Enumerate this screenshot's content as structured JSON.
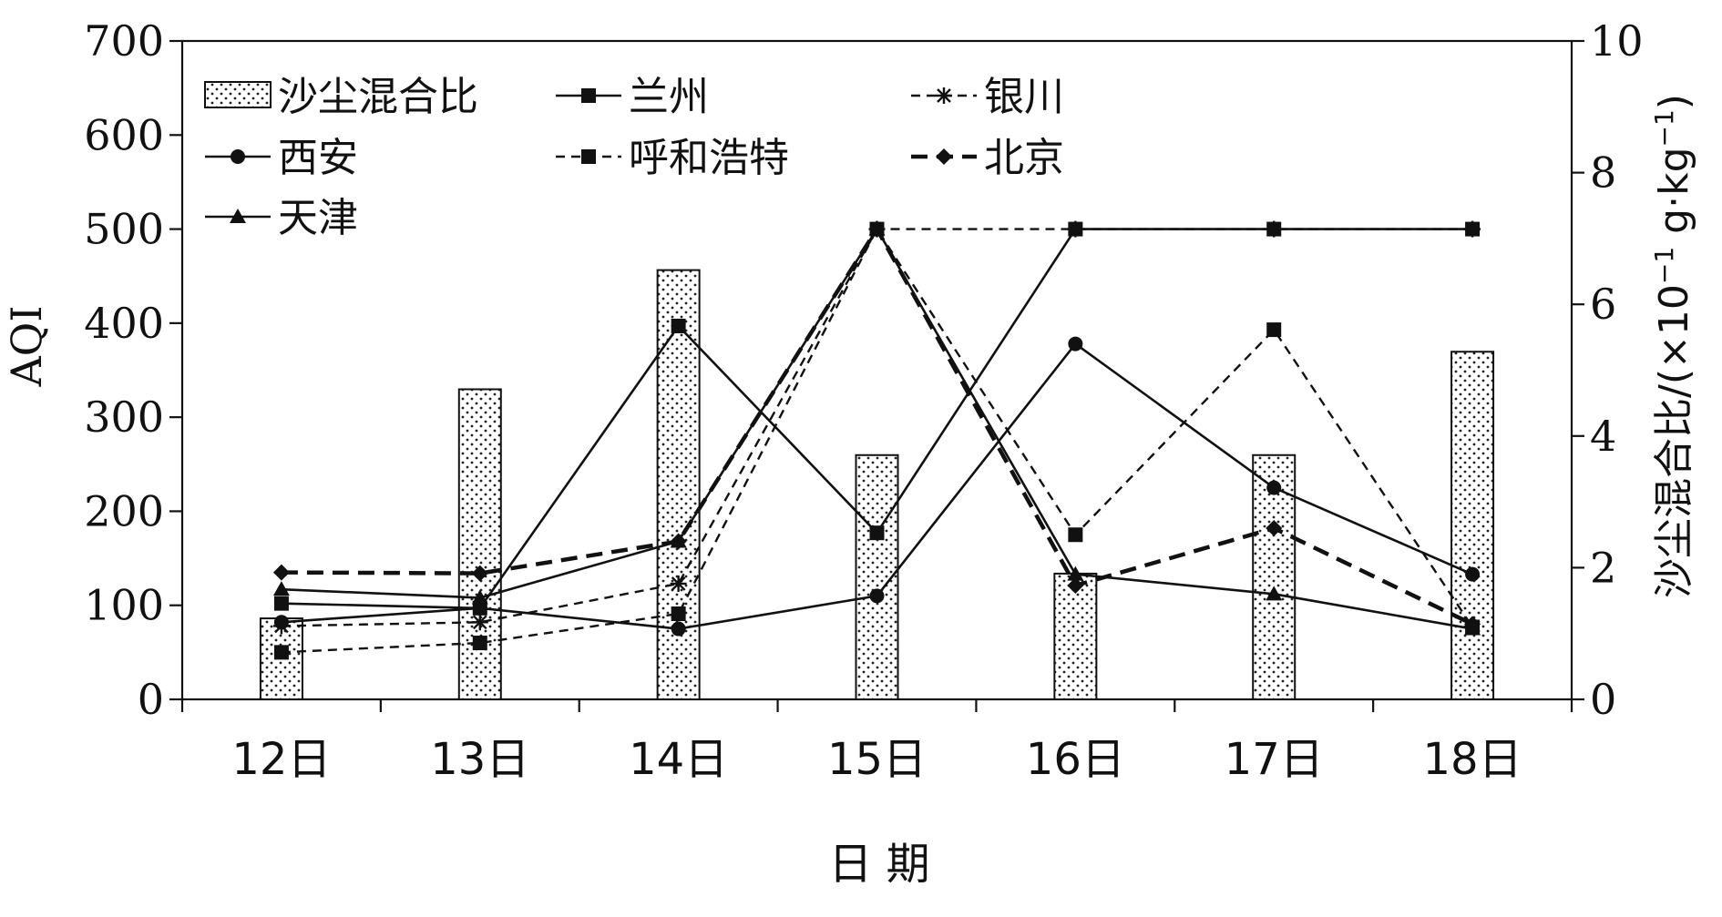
{
  "chart_data": {
    "type": "bar+line",
    "categories": [
      "12日",
      "13日",
      "14日",
      "15日",
      "16日",
      "17日",
      "18日"
    ],
    "xlabel": "日 期",
    "ylabel_left": "AQI",
    "ylabel_right_main": "沙尘混合比/(×10",
    "ylabel_right_sup1": "−1",
    "ylabel_right_mid": " g·kg",
    "ylabel_right_sup2": "−1",
    "ylabel_right_end": ")",
    "ylim_left": [
      0,
      700
    ],
    "yticks_left": [
      0,
      100,
      200,
      300,
      400,
      500,
      600,
      700
    ],
    "ylim_right": [
      0,
      10
    ],
    "yticks_right": [
      0,
      2,
      4,
      6,
      8,
      10
    ],
    "bars": {
      "name": "沙尘混合比",
      "axis": "right",
      "values": [
        1.23,
        4.71,
        6.52,
        3.71,
        1.91,
        3.71,
        5.28
      ]
    },
    "series": [
      {
        "name": "兰州",
        "style": "solid",
        "marker": "square",
        "values": [
          102,
          97,
          397,
          177,
          500,
          500,
          500
        ]
      },
      {
        "name": "银川",
        "style": "dashed",
        "marker": "asterisk",
        "values": [
          78,
          82,
          123,
          500,
          500,
          500,
          500
        ]
      },
      {
        "name": "西安",
        "style": "solid",
        "marker": "circle",
        "values": [
          82,
          97,
          75,
          110,
          378,
          225,
          133
        ]
      },
      {
        "name": "呼和浩特",
        "style": "dashed",
        "marker": "square",
        "values": [
          50,
          60,
          91,
          500,
          175,
          393,
          77
        ]
      },
      {
        "name": "北京",
        "style": "thick-dashed",
        "marker": "diamond",
        "values": [
          135,
          134,
          168,
          500,
          121,
          182,
          80
        ]
      },
      {
        "name": "天津",
        "style": "solid",
        "marker": "triangle",
        "values": [
          117,
          108,
          168,
          500,
          133,
          112,
          75
        ]
      }
    ],
    "legend_position": "top-left",
    "legend_order": [
      "沙尘混合比",
      "兰州",
      "银川",
      "西安",
      "呼和浩特",
      "北京",
      "天津"
    ]
  }
}
